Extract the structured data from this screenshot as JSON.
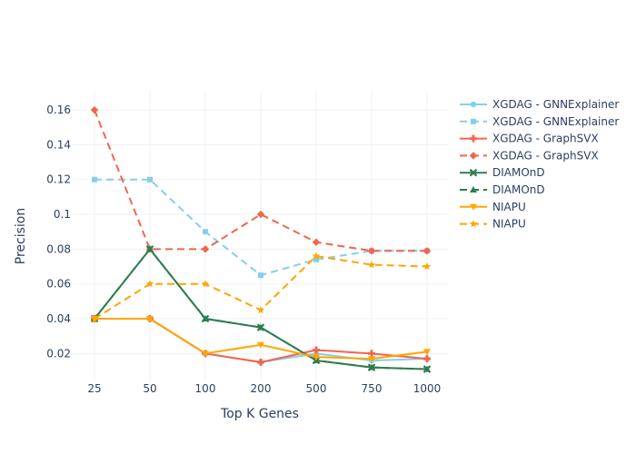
{
  "chart_data": {
    "type": "line",
    "title": "",
    "xlabel": "Top K Genes",
    "ylabel": "Precision",
    "categories": [
      "25",
      "50",
      "100",
      "200",
      "500",
      "750",
      "1000"
    ],
    "yticks": [
      "0.02",
      "0.04",
      "0.06",
      "0.08",
      "0.1",
      "0.12",
      "0.14",
      "0.16"
    ],
    "ylim": [
      0.004,
      0.171
    ],
    "grid": true,
    "legend_position": "right",
    "series": [
      {
        "name": "XGDAG - GNNExplainer",
        "color": "#87ceeb",
        "dash": "solid",
        "marker": "circle",
        "values": [
          0.04,
          0.04,
          0.02,
          0.015,
          0.02,
          0.016,
          0.017
        ]
      },
      {
        "name": "XGDAG - GNNExplainer",
        "color": "#87ceeb",
        "dash": "dash",
        "marker": "square",
        "values": [
          0.12,
          0.12,
          0.09,
          0.065,
          0.074,
          0.079,
          0.079
        ]
      },
      {
        "name": "XGDAG - GraphSVX",
        "color": "#f4644a",
        "dash": "solid",
        "marker": "cross",
        "values": [
          0.04,
          0.04,
          0.02,
          0.015,
          0.022,
          0.02,
          0.017
        ]
      },
      {
        "name": "XGDAG - GraphSVX",
        "color": "#f4644a",
        "dash": "dash",
        "marker": "diamond",
        "values": [
          0.16,
          0.08,
          0.08,
          0.1,
          0.084,
          0.079,
          0.079
        ]
      },
      {
        "name": "DIAMOnD",
        "color": "#2e7d4f",
        "dash": "solid",
        "marker": "x",
        "values": [
          0.04,
          0.08,
          0.04,
          0.035,
          0.016,
          0.012,
          0.011
        ]
      },
      {
        "name": "DIAMOnD",
        "color": "#2e7d4f",
        "dash": "dash",
        "marker": "triangle-up",
        "values": [
          0.04,
          0.08,
          0.04,
          0.035,
          0.016,
          0.012,
          0.011
        ]
      },
      {
        "name": "NIAPU",
        "color": "#ffa500",
        "dash": "solid",
        "marker": "triangle-down",
        "values": [
          0.04,
          0.04,
          0.02,
          0.025,
          0.018,
          0.017,
          0.021
        ]
      },
      {
        "name": "NIAPU",
        "color": "#ffa500",
        "dash": "dash",
        "marker": "star",
        "values": [
          0.04,
          0.06,
          0.06,
          0.045,
          0.076,
          0.071,
          0.07
        ]
      }
    ]
  }
}
